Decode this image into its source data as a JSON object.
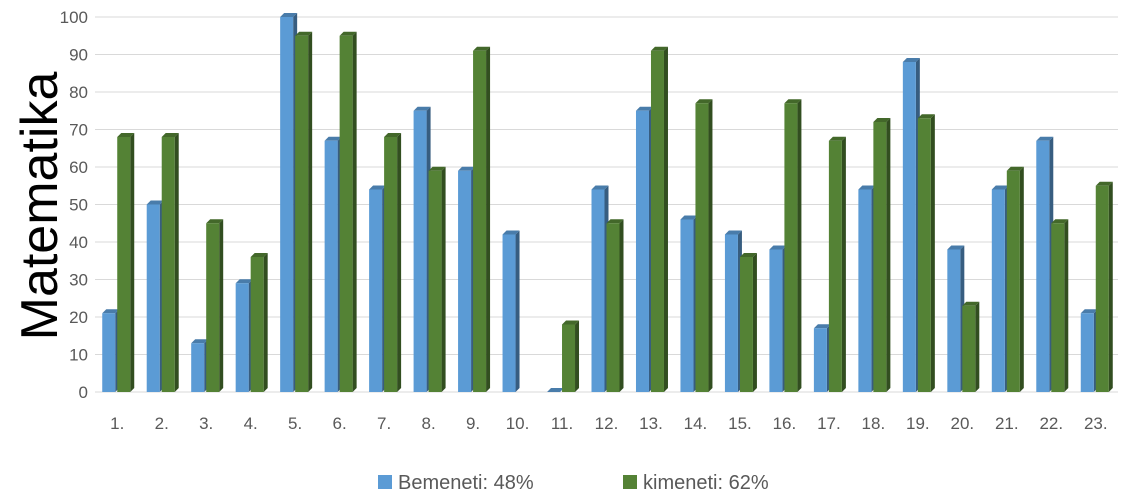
{
  "chart_data": {
    "type": "bar",
    "title": "",
    "xlabel": "",
    "ylabel": "Matematika",
    "ylim": [
      0,
      100
    ],
    "yticks": [
      0,
      10,
      20,
      30,
      40,
      50,
      60,
      70,
      80,
      90,
      100
    ],
    "grid": true,
    "legend_position": "bottom",
    "categories": [
      "1.",
      "2.",
      "3.",
      "4.",
      "5.",
      "6.",
      "7.",
      "8.",
      "9.",
      "10.",
      "11.",
      "12.",
      "13.",
      "14.",
      "15.",
      "16.",
      "17.",
      "18.",
      "19.",
      "20.",
      "21.",
      "22.",
      "23."
    ],
    "series": [
      {
        "name": "Bemeneti: 48%",
        "color": "#5B9BD5",
        "values": [
          21,
          50,
          13,
          29,
          100,
          67,
          54,
          75,
          59,
          42,
          0,
          54,
          75,
          46,
          42,
          38,
          17,
          54,
          88,
          38,
          54,
          67,
          21
        ]
      },
      {
        "name": "kimeneti: 62%",
        "color": "#548235",
        "values": [
          68,
          68,
          45,
          36,
          95,
          95,
          68,
          59,
          91,
          null,
          18,
          45,
          91,
          77,
          36,
          77,
          67,
          72,
          73,
          23,
          59,
          45,
          55
        ]
      }
    ]
  }
}
